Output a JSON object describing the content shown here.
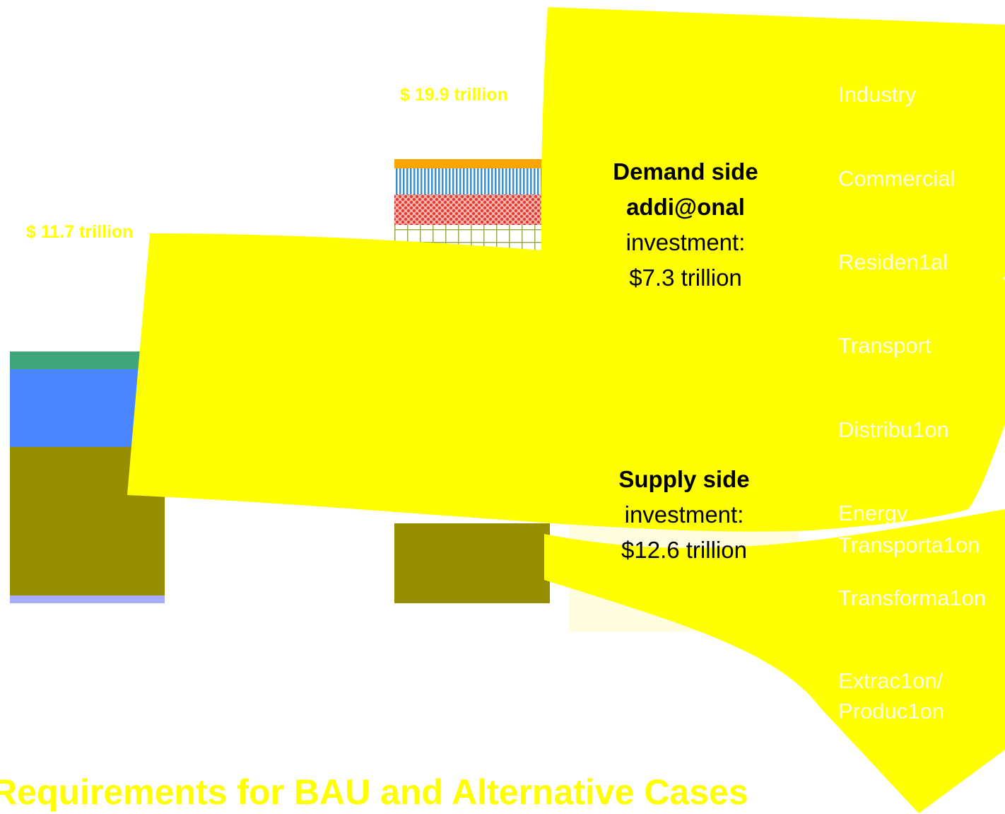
{
  "bau_total": "$ 11.7 trillion",
  "alt_total": "$ 19.9 trillion",
  "demand_callout": {
    "line1": "Demand side",
    "line2": "addi@onal",
    "line3": "investment:",
    "line4": "$7.3 trillion"
  },
  "supply_callout": {
    "line1": "Supply side",
    "line2": "investment:",
    "line3": "$12.6 trillion"
  },
  "legend": [
    "Industry",
    "Commercial",
    "Residen1al",
    "Transport",
    "Distribu1on",
    "Energy",
    "Transporta1on",
    "Transforma1on",
    "Extrac1on/",
    "Produc1on"
  ],
  "title": "Requirements for BAU and Alternative Cases"
}
